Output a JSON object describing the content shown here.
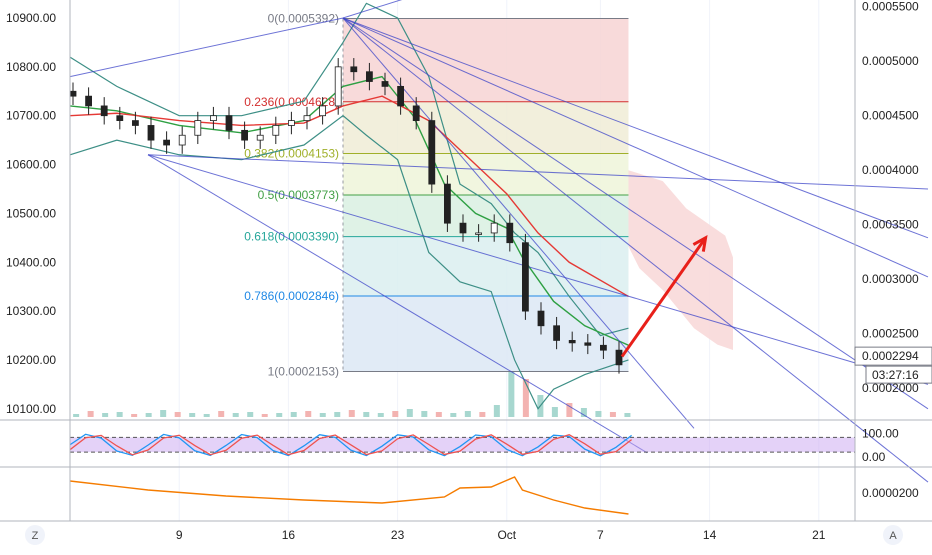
{
  "chart_data": {
    "type": "candlestick",
    "left_axis": {
      "ticks": [
        "10900.00",
        "10800.00",
        "10700.00",
        "10600.00",
        "10500.00",
        "10400.00",
        "10300.00",
        "10200.00",
        "10100.00"
      ],
      "values": [
        10900,
        10800,
        10700,
        10600,
        10500,
        10400,
        10300,
        10200,
        10100
      ],
      "range": [
        10080,
        10930
      ]
    },
    "right_axis": {
      "ticks": [
        "0.0005500",
        "0.0005000",
        "0.0004500",
        "0.0004000",
        "0.0003500",
        "0.0003000",
        "0.0002500",
        "0.0002000"
      ],
      "values": [
        0.00055,
        0.0005,
        0.00045,
        0.0004,
        0.00035,
        0.0003,
        0.00025,
        0.0002
      ],
      "range": [
        0.000178,
        0.000556
      ],
      "current_price": "0.0002294",
      "countdown": "03:27:16"
    },
    "x_axis": {
      "ticks": [
        "9",
        "16",
        "23",
        "Oct",
        "7",
        "14",
        "21"
      ],
      "tick_index": [
        7,
        14,
        21,
        28,
        34,
        41,
        48
      ],
      "first_day_index": 0,
      "last_day_index": 49
    },
    "fibonacci": [
      {
        "ratio": "0",
        "label": "0(0.0005392)",
        "price": 0.0005392,
        "color": "#787b86"
      },
      {
        "ratio": "0.236",
        "label": "0.236(0.0004628)",
        "price": 0.0004628,
        "color": "#d32f2f"
      },
      {
        "ratio": "0.382",
        "label": "0.382(0.0004153)",
        "price": 0.0004153,
        "color": "#a0b02a"
      },
      {
        "ratio": "0.5",
        "label": "0.5(0.0003773)",
        "price": 0.0003773,
        "color": "#43a047"
      },
      {
        "ratio": "0.618",
        "label": "0.618(0.0003390)",
        "price": 0.000339,
        "color": "#26a69a"
      },
      {
        "ratio": "0.786",
        "label": "0.786(0.0002846)",
        "price": 0.0002846,
        "color": "#1e88e5"
      },
      {
        "ratio": "1",
        "label": "1(0.0002153)",
        "price": 0.0002153,
        "color": "#787b86"
      }
    ],
    "close_series": [
      {
        "day": 0,
        "price": 10740
      },
      {
        "day": 1,
        "price": 10720
      },
      {
        "day": 2,
        "price": 10700
      },
      {
        "day": 3,
        "price": 10690
      },
      {
        "day": 4,
        "price": 10680
      },
      {
        "day": 5,
        "price": 10650
      },
      {
        "day": 6,
        "price": 10640
      },
      {
        "day": 7,
        "price": 10660
      },
      {
        "day": 8,
        "price": 10690
      },
      {
        "day": 9,
        "price": 10700
      },
      {
        "day": 10,
        "price": 10670
      },
      {
        "day": 11,
        "price": 10650
      },
      {
        "day": 12,
        "price": 10660
      },
      {
        "day": 13,
        "price": 10680
      },
      {
        "day": 14,
        "price": 10690
      },
      {
        "day": 15,
        "price": 10700
      },
      {
        "day": 16,
        "price": 10720
      },
      {
        "day": 17,
        "price": 10800
      },
      {
        "day": 18,
        "price": 10790
      },
      {
        "day": 19,
        "price": 10770
      },
      {
        "day": 20,
        "price": 10760
      },
      {
        "day": 21,
        "price": 10720
      },
      {
        "day": 22,
        "price": 10690
      },
      {
        "day": 23,
        "price": 10560
      },
      {
        "day": 24,
        "price": 10480
      },
      {
        "day": 25,
        "price": 10460
      },
      {
        "day": 26,
        "price": 10460
      },
      {
        "day": 27,
        "price": 10480
      },
      {
        "day": 28,
        "price": 10440
      },
      {
        "day": 29,
        "price": 10300
      },
      {
        "day": 30,
        "price": 10270
      },
      {
        "day": 31,
        "price": 10240
      },
      {
        "day": 32,
        "price": 10235
      },
      {
        "day": 33,
        "price": 10230
      },
      {
        "day": 34,
        "price": 10220
      },
      {
        "day": 35,
        "price": 10190
      }
    ],
    "stoch_rsi": {
      "ticks": [
        "100.00",
        "0.00"
      ],
      "band": [
        20,
        80
      ]
    },
    "lower_indicator": {
      "ticks": [
        "0.0000200"
      ]
    },
    "projection_arrow": {
      "from_day": 35,
      "from_price": 0.000229,
      "to_day": 41,
      "to_price": 0.000338
    },
    "colors": {
      "candle_up": "#26a69a",
      "candle_down": "#ef5350",
      "fib_red_zone": "#f3c1c1",
      "cloud": "#f2b4b4",
      "ma_green": "#2ea043",
      "ma_red": "#e53935",
      "trend_line": "#3c44c8",
      "arrow": "#e8201a",
      "stoch_k": "#2196f3",
      "stoch_d": "#ef5350",
      "stoch_band": "#c9a6f2",
      "lower_line": "#f57c00"
    },
    "bottom_buttons": {
      "left": "Z",
      "right": "A"
    }
  }
}
